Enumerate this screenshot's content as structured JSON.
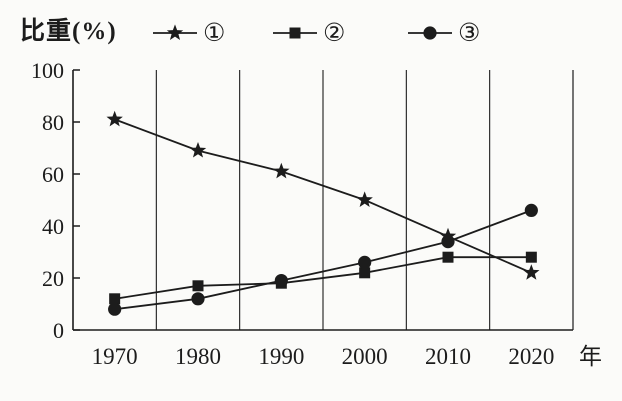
{
  "chart": {
    "y_axis_title": "比重(%)",
    "x_axis_unit": "年"
  },
  "chart_data": {
    "type": "line",
    "title": "",
    "ylabel": "比重(%)",
    "x_axis_unit": "年",
    "categories": [
      "1970",
      "1980",
      "1990",
      "2000",
      "2010",
      "2020"
    ],
    "ylim": [
      0,
      100
    ],
    "y_ticks": [
      0,
      20,
      40,
      60,
      80,
      100
    ],
    "grid": "vertical lines at decade boundaries (1975,1985,1995,2005,2015) plus right border",
    "legend_position": "top",
    "series": [
      {
        "name": "①",
        "marker": "star",
        "color": "#1c1c1c",
        "values": [
          81,
          69,
          61,
          50,
          36,
          22
        ]
      },
      {
        "name": "②",
        "marker": "square",
        "color": "#1c1c1c",
        "values": [
          12,
          17,
          18,
          22,
          28,
          28
        ]
      },
      {
        "name": "③",
        "marker": "circle",
        "color": "#1c1c1c",
        "values": [
          8,
          12,
          19,
          26,
          34,
          46
        ]
      }
    ]
  },
  "colors": {
    "ink": "#1c1c1c",
    "background": "#fbfbf9"
  }
}
